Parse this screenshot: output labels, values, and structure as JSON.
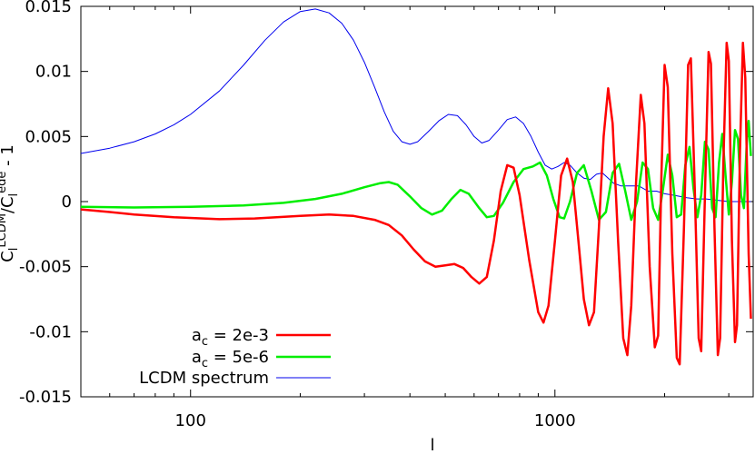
{
  "chart_data": {
    "type": "line",
    "xscale": "log",
    "xlim": [
      50,
      3500
    ],
    "ylim": [
      -0.015,
      0.015
    ],
    "xlabel": "l",
    "ylabel": {
      "main": "C",
      "sub1": "l",
      "sup1": "LCDM",
      "mid": "/C",
      "sub2": "l",
      "sup2": "ede",
      "tail": " - 1"
    },
    "xticks": [
      {
        "value": 100,
        "label": "100"
      },
      {
        "value": 1000,
        "label": "1000"
      }
    ],
    "yticks": [
      {
        "value": -0.015,
        "label": "-0.015"
      },
      {
        "value": -0.01,
        "label": "-0.01"
      },
      {
        "value": -0.005,
        "label": "-0.005"
      },
      {
        "value": 0,
        "label": "0"
      },
      {
        "value": 0.005,
        "label": "0.005"
      },
      {
        "value": 0.01,
        "label": "0.01"
      },
      {
        "value": 0.015,
        "label": "0.015"
      }
    ],
    "legend_position": "bottom-left",
    "series": [
      {
        "name": "a_c = 2e-3",
        "legend": {
          "pre": "a",
          "sub": "c",
          "post": " = 2e-3"
        },
        "color": "#ff0000",
        "width": 2.5,
        "points": [
          [
            50,
            -0.0006
          ],
          [
            60,
            -0.0008
          ],
          [
            70,
            -0.001
          ],
          [
            90,
            -0.0012
          ],
          [
            120,
            -0.00135
          ],
          [
            150,
            -0.0013
          ],
          [
            200,
            -0.0011
          ],
          [
            240,
            -0.001
          ],
          [
            280,
            -0.0011
          ],
          [
            320,
            -0.0014
          ],
          [
            350,
            -0.0018
          ],
          [
            380,
            -0.0026
          ],
          [
            410,
            -0.0037
          ],
          [
            440,
            -0.0046
          ],
          [
            470,
            -0.005
          ],
          [
            500,
            -0.0049
          ],
          [
            530,
            -0.0048
          ],
          [
            560,
            -0.0051
          ],
          [
            590,
            -0.0058
          ],
          [
            620,
            -0.0063
          ],
          [
            650,
            -0.0058
          ],
          [
            680,
            -0.003
          ],
          [
            710,
            0.0008
          ],
          [
            740,
            0.0028
          ],
          [
            770,
            0.0026
          ],
          [
            800,
            0.0005
          ],
          [
            850,
            -0.0045
          ],
          [
            900,
            -0.0085
          ],
          [
            930,
            -0.0093
          ],
          [
            960,
            -0.008
          ],
          [
            1000,
            -0.003
          ],
          [
            1040,
            0.002
          ],
          [
            1080,
            0.0033
          ],
          [
            1120,
            0.0015
          ],
          [
            1160,
            -0.003
          ],
          [
            1200,
            -0.0075
          ],
          [
            1240,
            -0.0095
          ],
          [
            1280,
            -0.0085
          ],
          [
            1320,
            -0.002
          ],
          [
            1360,
            0.005
          ],
          [
            1400,
            0.0087
          ],
          [
            1440,
            0.006
          ],
          [
            1490,
            -0.003
          ],
          [
            1540,
            -0.0105
          ],
          [
            1580,
            -0.0118
          ],
          [
            1620,
            -0.008
          ],
          [
            1670,
            0.0015
          ],
          [
            1720,
            0.0082
          ],
          [
            1760,
            0.006
          ],
          [
            1820,
            -0.005
          ],
          [
            1880,
            -0.0112
          ],
          [
            1920,
            -0.0103
          ],
          [
            1960,
            0.002
          ],
          [
            2000,
            0.0105
          ],
          [
            2040,
            0.0088
          ],
          [
            2100,
            -0.004
          ],
          [
            2160,
            -0.012
          ],
          [
            2200,
            -0.0125
          ],
          [
            2260,
            -0.002
          ],
          [
            2320,
            0.0105
          ],
          [
            2360,
            0.011
          ],
          [
            2420,
            0.001
          ],
          [
            2480,
            -0.0105
          ],
          [
            2520,
            -0.0115
          ],
          [
            2580,
            0.0005
          ],
          [
            2640,
            0.0115
          ],
          [
            2680,
            0.0106
          ],
          [
            2740,
            -0.002
          ],
          [
            2800,
            -0.0118
          ],
          [
            2840,
            -0.0105
          ],
          [
            2900,
            0.003
          ],
          [
            2960,
            0.0122
          ],
          [
            3000,
            0.0108
          ],
          [
            3060,
            -0.003
          ],
          [
            3120,
            -0.0108
          ],
          [
            3160,
            -0.0095
          ],
          [
            3220,
            0.004
          ],
          [
            3280,
            0.0122
          ],
          [
            3330,
            0.0095
          ],
          [
            3400,
            -0.004
          ],
          [
            3450,
            -0.009
          ]
        ]
      },
      {
        "name": "a_c = 5e-6",
        "legend": {
          "pre": "a",
          "sub": "c",
          "post": " = 5e-6"
        },
        "color": "#00ee00",
        "width": 2.5,
        "points": [
          [
            50,
            -0.0004
          ],
          [
            70,
            -0.00045
          ],
          [
            100,
            -0.0004
          ],
          [
            140,
            -0.0003
          ],
          [
            180,
            -0.0001
          ],
          [
            220,
            0.0002
          ],
          [
            260,
            0.0006
          ],
          [
            300,
            0.0011
          ],
          [
            330,
            0.0014
          ],
          [
            350,
            0.0015
          ],
          [
            370,
            0.0013
          ],
          [
            400,
            0.0004
          ],
          [
            430,
            -0.0005
          ],
          [
            460,
            -0.001
          ],
          [
            490,
            -0.0007
          ],
          [
            520,
            0.0002
          ],
          [
            550,
            0.0009
          ],
          [
            580,
            0.0006
          ],
          [
            620,
            -0.0005
          ],
          [
            650,
            -0.0012
          ],
          [
            680,
            -0.0011
          ],
          [
            720,
            -0.0001
          ],
          [
            770,
            0.0015
          ],
          [
            820,
            0.0025
          ],
          [
            870,
            0.0027
          ],
          [
            910,
            0.003
          ],
          [
            950,
            0.002
          ],
          [
            990,
            0.0002
          ],
          [
            1030,
            -0.0012
          ],
          [
            1060,
            -0.0013
          ],
          [
            1100,
            0.0
          ],
          [
            1150,
            0.0022
          ],
          [
            1200,
            0.0028
          ],
          [
            1260,
            0.0008
          ],
          [
            1320,
            -0.0014
          ],
          [
            1380,
            -0.0008
          ],
          [
            1440,
            0.0022
          ],
          [
            1500,
            0.0029
          ],
          [
            1560,
            0.0008
          ],
          [
            1620,
            -0.0014
          ],
          [
            1680,
            0.0
          ],
          [
            1740,
            0.003
          ],
          [
            1800,
            0.0025
          ],
          [
            1860,
            -0.0005
          ],
          [
            1920,
            -0.0014
          ],
          [
            1980,
            0.001
          ],
          [
            2040,
            0.0036
          ],
          [
            2100,
            0.002
          ],
          [
            2160,
            -0.0012
          ],
          [
            2220,
            -0.001
          ],
          [
            2280,
            0.0028
          ],
          [
            2340,
            0.0042
          ],
          [
            2400,
            0.001
          ],
          [
            2460,
            -0.0012
          ],
          [
            2520,
            0.0005
          ],
          [
            2580,
            0.0046
          ],
          [
            2640,
            0.004
          ],
          [
            2700,
            -0.0005
          ],
          [
            2760,
            -0.0012
          ],
          [
            2820,
            0.003
          ],
          [
            2880,
            0.0052
          ],
          [
            2940,
            0.002
          ],
          [
            3000,
            -0.001
          ],
          [
            3060,
            0.0015
          ],
          [
            3120,
            0.0055
          ],
          [
            3180,
            0.0048
          ],
          [
            3240,
            0.0005
          ],
          [
            3300,
            -0.0005
          ],
          [
            3360,
            0.0045
          ],
          [
            3400,
            0.0062
          ],
          [
            3450,
            0.0035
          ]
        ]
      },
      {
        "name": "LCDM spectrum",
        "legend": {
          "pre": "LCDM spectrum",
          "sub": "",
          "post": ""
        },
        "color": "#0000ee",
        "width": 1,
        "points": [
          [
            50,
            0.0037
          ],
          [
            60,
            0.0041
          ],
          [
            70,
            0.0046
          ],
          [
            80,
            0.0052
          ],
          [
            90,
            0.0059
          ],
          [
            100,
            0.0067
          ],
          [
            120,
            0.0085
          ],
          [
            140,
            0.0105
          ],
          [
            160,
            0.0124
          ],
          [
            180,
            0.0138
          ],
          [
            200,
            0.0146
          ],
          [
            220,
            0.0148
          ],
          [
            240,
            0.0145
          ],
          [
            260,
            0.0137
          ],
          [
            280,
            0.0124
          ],
          [
            300,
            0.0107
          ],
          [
            320,
            0.0088
          ],
          [
            340,
            0.0069
          ],
          [
            360,
            0.0054
          ],
          [
            380,
            0.0046
          ],
          [
            400,
            0.0044
          ],
          [
            420,
            0.0046
          ],
          [
            450,
            0.0054
          ],
          [
            480,
            0.0062
          ],
          [
            510,
            0.0067
          ],
          [
            540,
            0.0066
          ],
          [
            570,
            0.0059
          ],
          [
            600,
            0.005
          ],
          [
            630,
            0.0045
          ],
          [
            660,
            0.0047
          ],
          [
            700,
            0.0055
          ],
          [
            740,
            0.0063
          ],
          [
            780,
            0.0065
          ],
          [
            820,
            0.006
          ],
          [
            860,
            0.005
          ],
          [
            900,
            0.0038
          ],
          [
            940,
            0.0028
          ],
          [
            980,
            0.0025
          ],
          [
            1020,
            0.0027
          ],
          [
            1060,
            0.003
          ],
          [
            1100,
            0.0028
          ],
          [
            1150,
            0.0022
          ],
          [
            1200,
            0.0018
          ],
          [
            1250,
            0.0017
          ],
          [
            1300,
            0.0021
          ],
          [
            1350,
            0.0022
          ],
          [
            1400,
            0.0018
          ],
          [
            1450,
            0.0014
          ],
          [
            1520,
            0.0012
          ],
          [
            1600,
            0.0012
          ],
          [
            1700,
            0.0012
          ],
          [
            1800,
            0.0008
          ],
          [
            1900,
            0.0008
          ],
          [
            2000,
            0.0006
          ],
          [
            2100,
            0.0005
          ],
          [
            2200,
            0.0004
          ],
          [
            2300,
            0.0003
          ],
          [
            2450,
            0.0002
          ],
          [
            2600,
            0.0002
          ],
          [
            2800,
            0.0001
          ],
          [
            3000,
            0.0
          ],
          [
            3200,
            0.0
          ],
          [
            3450,
            0.0
          ]
        ]
      }
    ]
  }
}
